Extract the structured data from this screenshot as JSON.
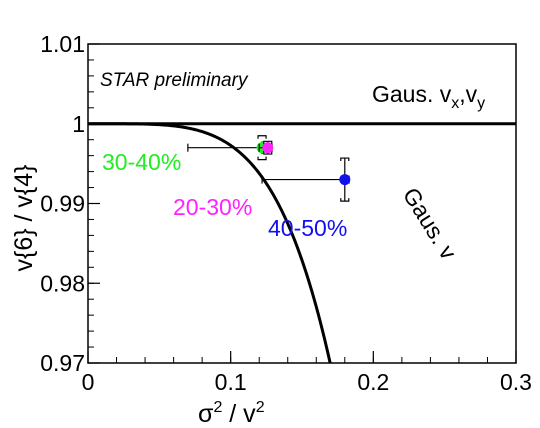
{
  "chart_data": {
    "type": "scatter",
    "xlabel": {
      "base": "σ",
      "sup": "2",
      "mid": " / v",
      "sup2": "2"
    },
    "ylabel": "v{6} / v{4}",
    "xlim": [
      0,
      0.3
    ],
    "ylim": [
      0.97,
      1.01
    ],
    "x_ticks": [
      0,
      0.1,
      0.2,
      0.3
    ],
    "x_tick_labels": [
      "0",
      "0.1",
      "0.2",
      "0.3"
    ],
    "y_ticks": [
      0.97,
      0.98,
      0.99,
      1,
      1.01
    ],
    "y_tick_labels": [
      "0.97",
      "0.98",
      "0.99",
      "1",
      "1.01"
    ],
    "preliminary_label": "STAR preliminary",
    "reference_lines": [
      {
        "name": "Gaus. v",
        "sub": "x",
        "sep": ",",
        "name2": "v",
        "sub2": "y",
        "type": "constant",
        "y": 1.0
      },
      {
        "name": "Gaus. v",
        "type": "curve"
      }
    ],
    "points": [
      {
        "label": "30-40%",
        "color": "#22ee22",
        "x": 0.122,
        "y": 0.997,
        "xerr_low": 0.052,
        "xerr_high": 0.006,
        "yerr": 0.0008,
        "sys_y": 0.0015
      },
      {
        "label": "20-30%",
        "color": "#ff22ff",
        "x": 0.126,
        "y": 0.997,
        "xerr_low": 0.006,
        "xerr_high": 0.003,
        "yerr": 0.0008,
        "sys_y": 0.0008
      },
      {
        "label": "40-50%",
        "color": "#1111ee",
        "x": 0.18,
        "y": 0.993,
        "xerr_low": 0.058,
        "xerr_high": 0.003,
        "yerr": 0.0027,
        "sys_y": 0.0027
      }
    ],
    "grid": false,
    "legend": "none"
  }
}
